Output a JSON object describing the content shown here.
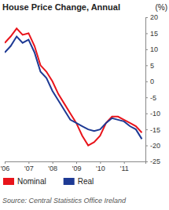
{
  "chart_data": {
    "type": "line",
    "title": "House Price Change, Annual",
    "y_label": "(%)",
    "source": "Source: Central Statistics Office Ireland",
    "x": [
      2006.0,
      2006.25,
      2006.5,
      2006.75,
      2007.0,
      2007.25,
      2007.5,
      2007.75,
      2008.0,
      2008.25,
      2008.5,
      2008.75,
      2009.0,
      2009.25,
      2009.5,
      2009.75,
      2010.0,
      2010.25,
      2010.5,
      2010.75,
      2011.0,
      2011.25,
      2011.5,
      2011.75
    ],
    "series": [
      {
        "name": "Nominal",
        "color": "#e8141b",
        "values": [
          12,
          14,
          16.5,
          14.5,
          15,
          11,
          5,
          3,
          0,
          -4,
          -7,
          -10,
          -13,
          -17,
          -20,
          -19,
          -17,
          -13,
          -11,
          -11,
          -12,
          -13,
          -14,
          -16
        ]
      },
      {
        "name": "Real",
        "color": "#1e3a94",
        "values": [
          9,
          11,
          14,
          12,
          13,
          9,
          3,
          1,
          -3,
          -6,
          -9,
          -12,
          -13,
          -14,
          -15,
          -15.5,
          -15,
          -13,
          -11.5,
          -12,
          -12.5,
          -14,
          -15,
          -18
        ]
      }
    ],
    "xlim": [
      2006,
      2011.9
    ],
    "xticks": [
      {
        "value": 2006,
        "label": "'06"
      },
      {
        "value": 2007,
        "label": "'07"
      },
      {
        "value": 2008,
        "label": "'08"
      },
      {
        "value": 2009,
        "label": "'09"
      },
      {
        "value": 2010,
        "label": "'10"
      },
      {
        "value": 2011,
        "label": "'11"
      }
    ],
    "ylim": [
      -25,
      20
    ],
    "yticks": [
      20,
      15,
      10,
      5,
      0,
      -5,
      -10,
      -15,
      -20,
      -25
    ],
    "grid": false,
    "legend": "bottom"
  }
}
